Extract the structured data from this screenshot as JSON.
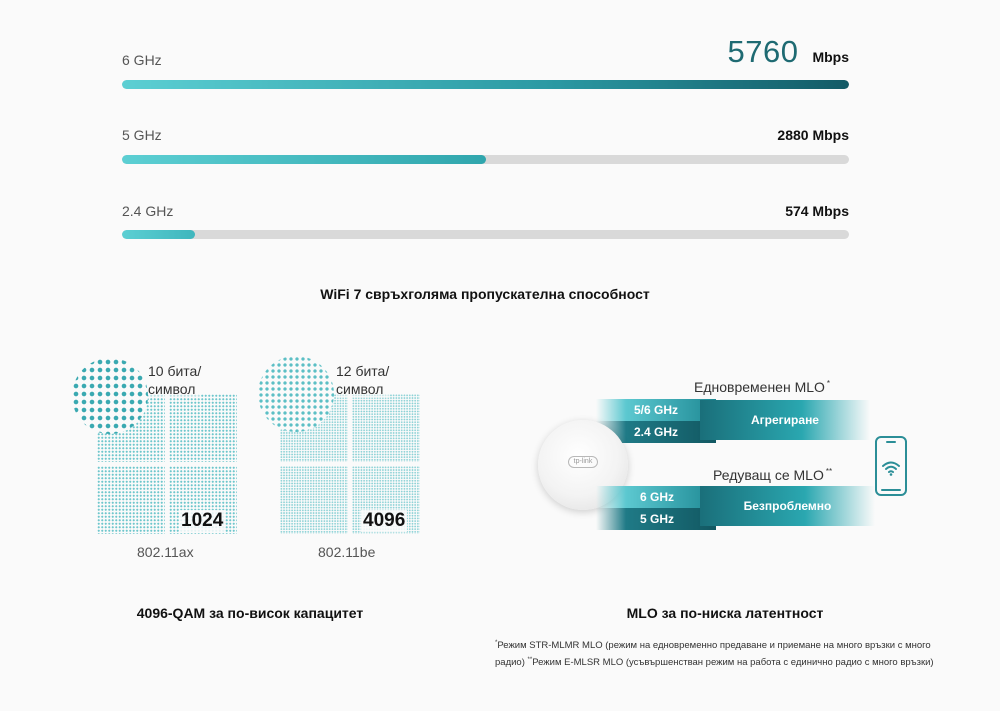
{
  "bands": [
    {
      "label": "6 GHz",
      "value_big": "5760",
      "value_unit": "Mbps",
      "fill_fraction": 1.0
    },
    {
      "label": "5 GHz",
      "value": "2880 Mbps",
      "fill_fraction": 0.5
    },
    {
      "label": "2.4 GHz",
      "value": "574 Mbps",
      "fill_fraction": 0.1
    }
  ],
  "throughput_caption": "WiFi 7 свръхголяма пропускателна способност",
  "qam": {
    "left": {
      "bits_line1": "10 бита/",
      "bits_line2": "символ",
      "number": "1024",
      "standard": "802.11ax"
    },
    "right": {
      "bits_line1": "12 бита/",
      "bits_line2": "символ",
      "number": "4096",
      "standard": "802.11be"
    },
    "caption": "4096-QAM за по-висок капацитет"
  },
  "mlo": {
    "simultaneous_title": "Едновременен MLO",
    "simultaneous_mark": "*",
    "band_a1": "5/6 GHz",
    "band_a2": "2.4 GHz",
    "aggregate_label": "Агрегиране",
    "alternating_title": "Редуващ се MLO",
    "alternating_mark": "**",
    "band_b1": "6 GHz",
    "band_b2": "5 GHz",
    "seamless_label": "Безпроблемно",
    "caption": "MLO за по-ниска латентност",
    "note_mark1": "*",
    "note1": "Режим STR-MLMR MLO (режим на едновременно предаване и приемане на много връзки с много радио)",
    "note_mark2": "**",
    "note2": "Режим E-MLSR MLO (усъвършенстван режим на работа с единично радио с много връзки)",
    "ap_logo": "tp-link"
  },
  "colors": {
    "accent": "#2a98a2",
    "accent_dark": "#135a66",
    "accent_light": "#5ccfd3",
    "track": "#d9d9d9"
  },
  "icons": [
    "wifi-icon",
    "phone-icon",
    "access-point-icon"
  ]
}
